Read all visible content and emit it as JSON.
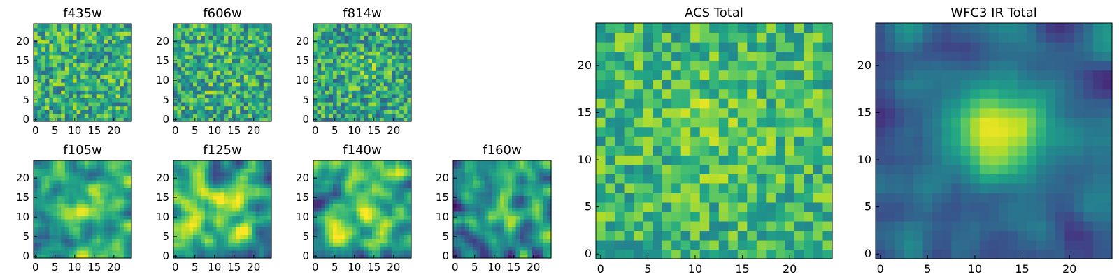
{
  "figure": {
    "description_type": "image grid",
    "colormap": "viridis"
  },
  "chart_data": [
    {
      "type": "heatmap",
      "title": "f435w",
      "rows": 25,
      "cols": 25,
      "xticks": [
        0,
        5,
        10,
        15,
        20
      ],
      "yticks": [
        0,
        5,
        10,
        15,
        20
      ],
      "texture": "noise",
      "seed": 11,
      "base": 0.62,
      "blob": 0.0,
      "blob_x": 12,
      "blob_y": 12,
      "blob_sigma": 4,
      "noise": 0.28
    },
    {
      "type": "heatmap",
      "title": "f606w",
      "rows": 25,
      "cols": 25,
      "xticks": [
        0,
        5,
        10,
        15,
        20
      ],
      "yticks": [
        0,
        5,
        10,
        15,
        20
      ],
      "texture": "noise",
      "seed": 23,
      "base": 0.6,
      "blob": 0.06,
      "blob_x": 12,
      "blob_y": 13,
      "blob_sigma": 5,
      "noise": 0.28
    },
    {
      "type": "heatmap",
      "title": "f814w",
      "rows": 25,
      "cols": 25,
      "xticks": [
        0,
        5,
        10,
        15,
        20
      ],
      "yticks": [
        0,
        5,
        10,
        15,
        20
      ],
      "texture": "noise",
      "seed": 37,
      "base": 0.58,
      "blob": 0.1,
      "blob_x": 13,
      "blob_y": 13,
      "blob_sigma": 4,
      "noise": 0.28
    },
    {
      "type": "heatmap",
      "title": "f105w",
      "rows": 25,
      "cols": 25,
      "xticks": [
        0,
        5,
        10,
        15,
        20
      ],
      "yticks": [
        0,
        5,
        10,
        15,
        20
      ],
      "texture": "smooth",
      "seed": 41,
      "base": 0.55,
      "blob": 0.35,
      "blob_x": 13,
      "blob_y": 12,
      "blob_sigma": 4,
      "noise": 0.3
    },
    {
      "type": "heatmap",
      "title": "f125w",
      "rows": 25,
      "cols": 25,
      "xticks": [
        0,
        5,
        10,
        15,
        20
      ],
      "yticks": [
        0,
        5,
        10,
        15,
        20
      ],
      "texture": "smooth",
      "seed": 53,
      "base": 0.62,
      "blob": 0.2,
      "blob_x": 15,
      "blob_y": 13,
      "blob_sigma": 5,
      "noise": 0.3
    },
    {
      "type": "heatmap",
      "title": "f140w",
      "rows": 25,
      "cols": 25,
      "xticks": [
        0,
        5,
        10,
        15,
        20
      ],
      "yticks": [
        0,
        5,
        10,
        15,
        20
      ],
      "texture": "smooth",
      "seed": 67,
      "base": 0.62,
      "blob": 0.18,
      "blob_x": 12,
      "blob_y": 14,
      "blob_sigma": 5,
      "noise": 0.32
    },
    {
      "type": "heatmap",
      "title": "f160w",
      "rows": 25,
      "cols": 25,
      "xticks": [
        0,
        5,
        10,
        15,
        20
      ],
      "yticks": [
        0,
        5,
        10,
        15,
        20
      ],
      "texture": "smooth",
      "seed": 79,
      "base": 0.5,
      "blob": 0.3,
      "blob_x": 12,
      "blob_y": 12,
      "blob_sigma": 4,
      "noise": 0.32
    },
    {
      "type": "heatmap",
      "title": "ACS Total",
      "rows": 25,
      "cols": 25,
      "xticks": [
        0,
        5,
        10,
        15,
        20
      ],
      "yticks": [
        0,
        5,
        10,
        15,
        20
      ],
      "texture": "noise",
      "seed": 97,
      "base": 0.66,
      "blob": 0.1,
      "blob_x": 12,
      "blob_y": 14,
      "blob_sigma": 4,
      "noise": 0.22
    },
    {
      "type": "heatmap",
      "title": "WFC3 IR Total",
      "rows": 25,
      "cols": 25,
      "xticks": [
        0,
        5,
        10,
        15,
        20
      ],
      "yticks": [
        0,
        5,
        10,
        15,
        20
      ],
      "texture": "smooth",
      "seed": 113,
      "base": 0.32,
      "blob": 0.62,
      "blob_x": 12.5,
      "blob_y": 13,
      "blob_sigma": 3.6,
      "noise": 0.14
    }
  ]
}
